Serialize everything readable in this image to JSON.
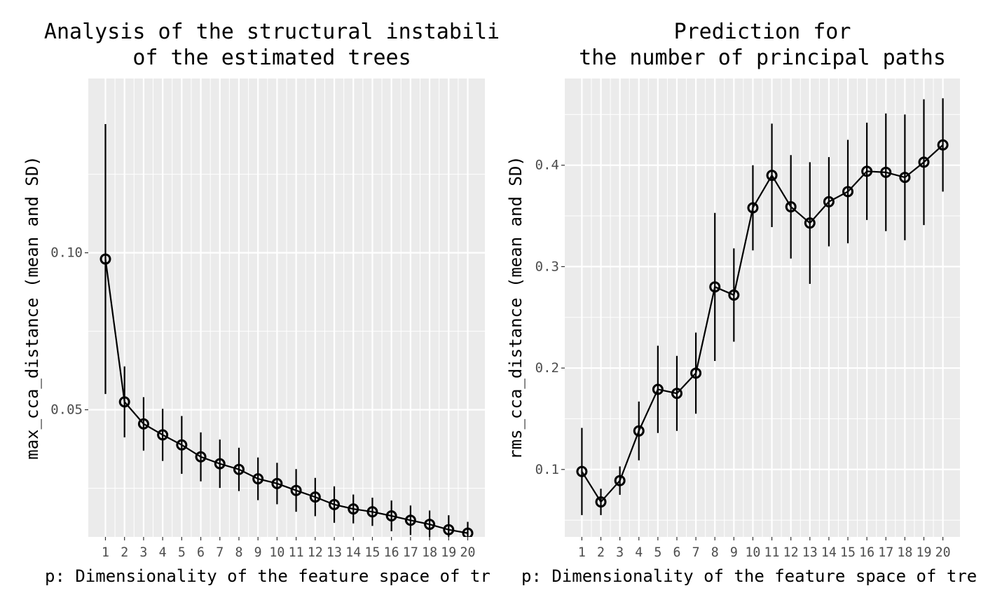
{
  "chart_data": [
    {
      "type": "line",
      "title_lines": [
        "Analysis of the structural instabili",
        "of the estimated trees"
      ],
      "xlabel": "p: Dimensionality of the feature space of tr",
      "ylabel": "max_cca_distance (mean and SD)",
      "x": [
        1,
        2,
        3,
        4,
        5,
        6,
        7,
        8,
        9,
        10,
        11,
        12,
        13,
        14,
        15,
        16,
        17,
        18,
        19,
        20
      ],
      "xlim": [
        0.1,
        20.9
      ],
      "ylim": [
        0.0095,
        0.1555
      ],
      "y_ticks": [
        0.05,
        0.1
      ],
      "y_tick_labels": [
        "0.05",
        "0.10"
      ],
      "grid": true,
      "series": [
        {
          "mean": [
            0.098,
            0.0525,
            0.0455,
            0.042,
            0.0388,
            0.035,
            0.0328,
            0.031,
            0.028,
            0.0265,
            0.0243,
            0.0222,
            0.0198,
            0.0184,
            0.0175,
            0.0162,
            0.0148,
            0.0135,
            0.0118,
            0.0107
          ],
          "sd": [
            0.043,
            0.0113,
            0.0085,
            0.0083,
            0.0092,
            0.0078,
            0.0077,
            0.0069,
            0.0068,
            0.0066,
            0.0068,
            0.0061,
            0.0058,
            0.0046,
            0.0045,
            0.0049,
            0.0047,
            0.0044,
            0.0046,
            0.0036
          ]
        }
      ]
    },
    {
      "type": "line",
      "title_lines": [
        "Prediction for",
        "the number of principal paths"
      ],
      "xlabel": "p: Dimensionality of the feature space of tre",
      "ylabel": "rms_cca_distance (mean and SD)",
      "x": [
        1,
        2,
        3,
        4,
        5,
        6,
        7,
        8,
        9,
        10,
        11,
        12,
        13,
        14,
        15,
        16,
        17,
        18,
        19,
        20
      ],
      "xlim": [
        0.1,
        20.9
      ],
      "ylim": [
        0.0335,
        0.4855
      ],
      "y_ticks": [
        0.1,
        0.2,
        0.3,
        0.4
      ],
      "y_tick_labels": [
        "0.1",
        "0.2",
        "0.3",
        "0.4"
      ],
      "grid": true,
      "series": [
        {
          "mean": [
            0.098,
            0.068,
            0.089,
            0.138,
            0.179,
            0.175,
            0.195,
            0.28,
            0.272,
            0.358,
            0.39,
            0.359,
            0.343,
            0.364,
            0.374,
            0.394,
            0.393,
            0.388,
            0.403,
            0.42
          ],
          "sd": [
            0.043,
            0.013,
            0.014,
            0.029,
            0.043,
            0.037,
            0.04,
            0.073,
            0.046,
            0.042,
            0.051,
            0.051,
            0.06,
            0.044,
            0.051,
            0.048,
            0.058,
            0.062,
            0.062,
            0.046
          ]
        }
      ]
    }
  ]
}
